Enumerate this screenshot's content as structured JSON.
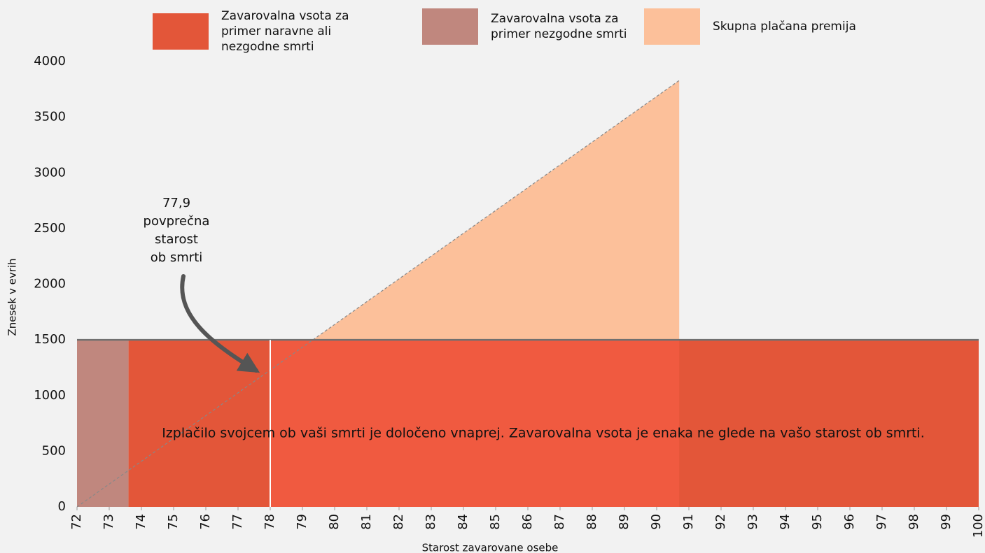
{
  "chart_data": {
    "type": "area",
    "y_label": "Znesek v evrih",
    "x_label": "Starost zavarovane osebe",
    "xlim": [
      72,
      100
    ],
    "xticks": [
      72,
      73,
      74,
      75,
      76,
      77,
      78,
      79,
      80,
      81,
      82,
      83,
      84,
      85,
      86,
      87,
      88,
      89,
      90,
      91,
      92,
      93,
      94,
      95,
      96,
      97,
      98,
      99,
      100
    ],
    "ylim": [
      0,
      4000
    ],
    "yticks": [
      0,
      500,
      1000,
      1500,
      2000,
      2500,
      3000,
      3500,
      4000
    ],
    "series": [
      {
        "name": "Zavarovalna vsota za primer naravne ali nezgodne smrti",
        "color": "#e35639",
        "x": [
          73.6,
          100
        ],
        "values": [
          1500,
          1500
        ]
      },
      {
        "name": "Zavarovalna vsota za primer nezgodne smrti",
        "color": "#c0877e",
        "x": [
          72,
          73.6
        ],
        "values": [
          1500,
          1500
        ]
      },
      {
        "name": "Skupna plačana premija",
        "color": "#fcc09a",
        "x": [
          72,
          90.7
        ],
        "values": [
          0,
          3830
        ]
      }
    ],
    "annotation": {
      "x": 78,
      "lines": [
        "77,9",
        "povprečna",
        "starost",
        "ob smrti"
      ]
    },
    "note": "Izplačilo svojcem ob vaši smrti je določeno vnaprej. Zavarovalna vsota je enaka ne glede na vašo starost ob smrti."
  }
}
